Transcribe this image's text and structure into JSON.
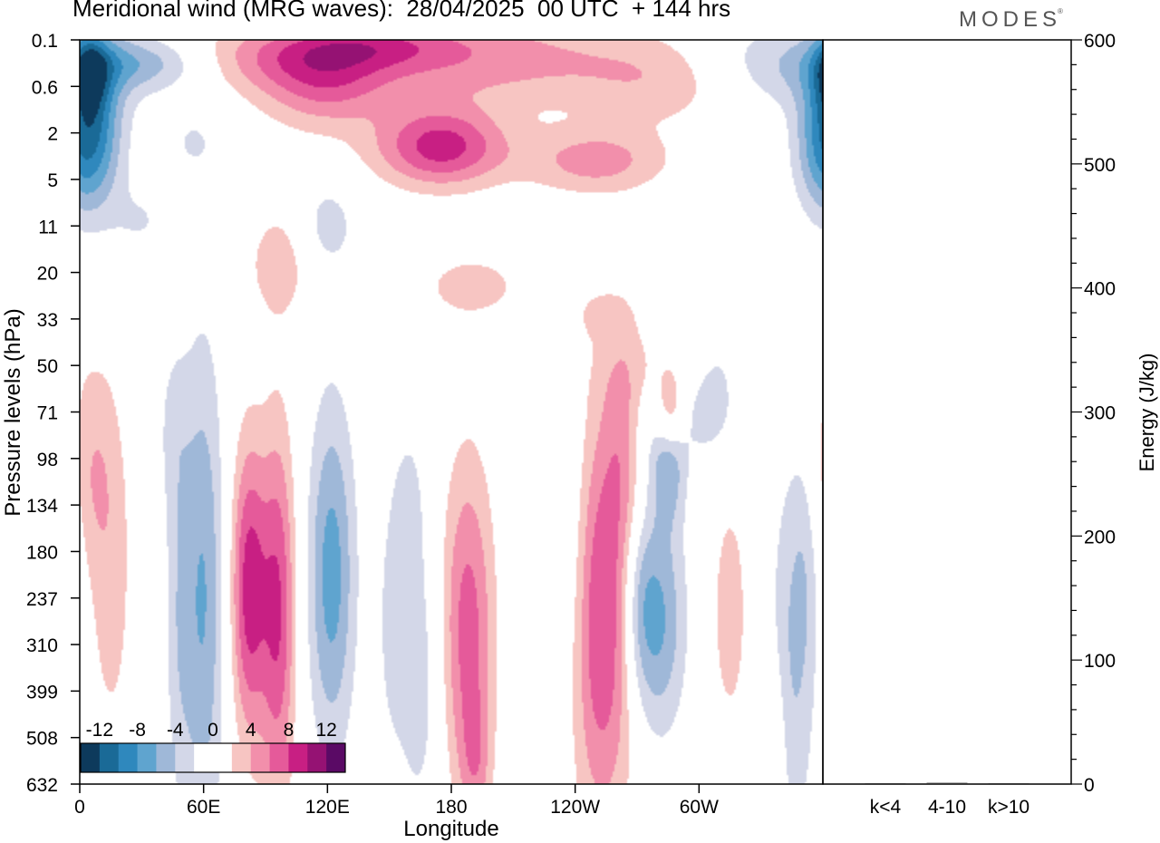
{
  "title": "Meridional wind (MRG waves):  28/04/2025  00 UTC  + 144 hrs",
  "logo": "MODES",
  "logo_mark": "®",
  "chart_data": [
    {
      "type": "heatmap",
      "title": "Meridional wind (MRG waves):  28/04/2025  00 UTC  + 144 hrs",
      "xlabel": "Longitude",
      "ylabel": "Pressure levels (hPa)",
      "x_ticks": [
        "0",
        "60E",
        "120E",
        "180",
        "120W",
        "60W"
      ],
      "y_ticks": [
        "0.1",
        "0.6",
        "2",
        "5",
        "11",
        "20",
        "33",
        "50",
        "71",
        "98",
        "134",
        "180",
        "237",
        "310",
        "399",
        "508",
        "632"
      ],
      "colorbar": {
        "labels": [
          "-12",
          "-8",
          "-4",
          "0",
          "4",
          "8",
          "12"
        ],
        "colors": [
          "#0d3a5c",
          "#1a6a97",
          "#2f88bd",
          "#5fa4cf",
          "#9fb8d8",
          "#d3d7e8",
          "#ffffff",
          "#ffffff",
          "#f7c5c2",
          "#f28fab",
          "#e55a9a",
          "#c81f83",
          "#951273",
          "#5a0a65"
        ]
      },
      "fields": [
        {
          "lon": 8,
          "lev": 1.8,
          "sx": 10,
          "sy": 1.2,
          "v": -6
        },
        {
          "lon": 5,
          "lev": 0.7,
          "sx": 6,
          "sy": 0.6,
          "v": -6
        },
        {
          "lon": 30,
          "lev": 0.5,
          "sx": 25,
          "sy": 0.4,
          "v": -5
        },
        {
          "lon": 55,
          "lev": 2.2,
          "sx": 12,
          "sy": 0.6,
          "v": -2
        },
        {
          "lon": 92,
          "lev": 0.4,
          "sx": 38,
          "sy": 0.5,
          "v": 4
        },
        {
          "lon": 97,
          "lev": 4.8,
          "sx": 12,
          "sy": 0.9,
          "v": 3
        },
        {
          "lon": 118,
          "lev": 1.0,
          "sx": 22,
          "sy": 0.7,
          "v": 5
        },
        {
          "lon": 140,
          "lev": 0.1,
          "sx": 30,
          "sy": 0.35,
          "v": 4
        },
        {
          "lon": 120,
          "lev": 4.0,
          "sx": 10,
          "sy": 0.7,
          "v": -3
        },
        {
          "lon": 190,
          "lev": 0.4,
          "sx": 55,
          "sy": 0.7,
          "v": 5
        },
        {
          "lon": 175,
          "lev": 2.3,
          "sx": 22,
          "sy": 0.6,
          "v": 9
        },
        {
          "lon": 250,
          "lev": 2.6,
          "sx": 24,
          "sy": 0.5,
          "v": 5
        },
        {
          "lon": 290,
          "lev": 0.8,
          "sx": 32,
          "sy": 0.7,
          "v": 5
        },
        {
          "lon": 330,
          "lev": 0.6,
          "sx": 40,
          "sy": 0.7,
          "v": -5
        },
        {
          "lon": 360,
          "lev": 2.3,
          "sx": 10,
          "sy": 1.0,
          "v": -6
        },
        {
          "lon": 30,
          "lev": 3.9,
          "sx": 12,
          "sy": 0.6,
          "v": -2
        },
        {
          "lon": 190,
          "lev": 5.3,
          "sx": 18,
          "sy": 0.5,
          "v": 3
        },
        {
          "lon": 252,
          "lev": 5.9,
          "sx": 10,
          "sy": 0.4,
          "v": 2
        },
        {
          "lon": 305,
          "lev": 7.1,
          "sx": 30,
          "sy": 0.7,
          "v": 3
        },
        {
          "lon": 315,
          "lev": 6.9,
          "sx": 14,
          "sy": 0.7,
          "v": -3
        },
        {
          "lon": 305,
          "lev": 7.8,
          "sx": 10,
          "sy": 0.8,
          "v": -4
        },
        {
          "lon": 285,
          "lev": 8.9,
          "sx": 6,
          "sy": 1.0,
          "v": -6
        },
        {
          "lon": 265,
          "lev": 8.7,
          "sx": 8,
          "sy": 1.8,
          "v": 4
        },
        {
          "lon": 272,
          "lev": 8.3,
          "sx": 6,
          "sy": 1.2,
          "v": -2
        },
        {
          "lon": 286,
          "lev": 8.1,
          "sx": 5,
          "sy": 0.6,
          "v": 6
        },
        {
          "lon": 45,
          "lev": 8.3,
          "sx": 6,
          "sy": 1.4,
          "v": -2
        },
        {
          "lon": 60,
          "lev": 12.0,
          "sx": 7,
          "sy": 3.8,
          "v": -6
        },
        {
          "lon": 48,
          "lev": 12.5,
          "sx": 5,
          "sy": 2.8,
          "v": -3
        },
        {
          "lon": 82,
          "lev": 11.8,
          "sx": 6,
          "sy": 2.2,
          "v": 9
        },
        {
          "lon": 96,
          "lev": 12.3,
          "sx": 6,
          "sy": 2.8,
          "v": 8
        },
        {
          "lon": 122,
          "lev": 11.5,
          "sx": 8,
          "sy": 2.6,
          "v": -7
        },
        {
          "lon": 15,
          "lev": 11.5,
          "sx": 8,
          "sy": 2.8,
          "v": 3
        },
        {
          "lon": 5,
          "lev": 9.2,
          "sx": 8,
          "sy": 1.5,
          "v": 3
        },
        {
          "lon": 150,
          "lev": 12.5,
          "sx": 6,
          "sy": 2.5,
          "v": -2
        },
        {
          "lon": 165,
          "lev": 13.8,
          "sx": 8,
          "sy": 2.3,
          "v": -3
        },
        {
          "lon": 188,
          "lev": 12.7,
          "sx": 9,
          "sy": 2.6,
          "v": 7
        },
        {
          "lon": 215,
          "lev": 10.9,
          "sx": 5,
          "sy": 0.8,
          "v": -2
        },
        {
          "lon": 240,
          "lev": 11.5,
          "sx": 5,
          "sy": 2.4,
          "v": -2
        },
        {
          "lon": 253,
          "lev": 12.6,
          "sx": 11,
          "sy": 3.0,
          "v": 8
        },
        {
          "lon": 271,
          "lev": 12.0,
          "sx": 6,
          "sy": 1.5,
          "v": -4
        },
        {
          "lon": 281,
          "lev": 12.5,
          "sx": 9,
          "sy": 1.7,
          "v": -6
        },
        {
          "lon": 315,
          "lev": 12.3,
          "sx": 7,
          "sy": 2.0,
          "v": 3
        },
        {
          "lon": 345,
          "lev": 13.4,
          "sx": 8,
          "sy": 3.0,
          "v": -4
        },
        {
          "lon": 352,
          "lev": 11.3,
          "sx": 5,
          "sy": 1.8,
          "v": -2
        },
        {
          "lon": 335,
          "lev": 15.3,
          "sx": 5,
          "sy": 1.5,
          "v": 3
        },
        {
          "lon": 192,
          "lev": 15.5,
          "sx": 5,
          "sy": 1.0,
          "v": 3
        },
        {
          "lon": 160,
          "lev": 9.9,
          "sx": 6,
          "sy": 1.4,
          "v": -2
        }
      ]
    },
    {
      "type": "bar",
      "ylabel": "Energy (J/kg)",
      "categories": [
        "k<4",
        "4-10",
        "k>10"
      ],
      "values": [
        0.3,
        1.0,
        0.2
      ],
      "ylim": [
        0,
        600
      ],
      "y_ticks": [
        "0",
        "100",
        "200",
        "300",
        "400",
        "500",
        "600"
      ]
    }
  ]
}
